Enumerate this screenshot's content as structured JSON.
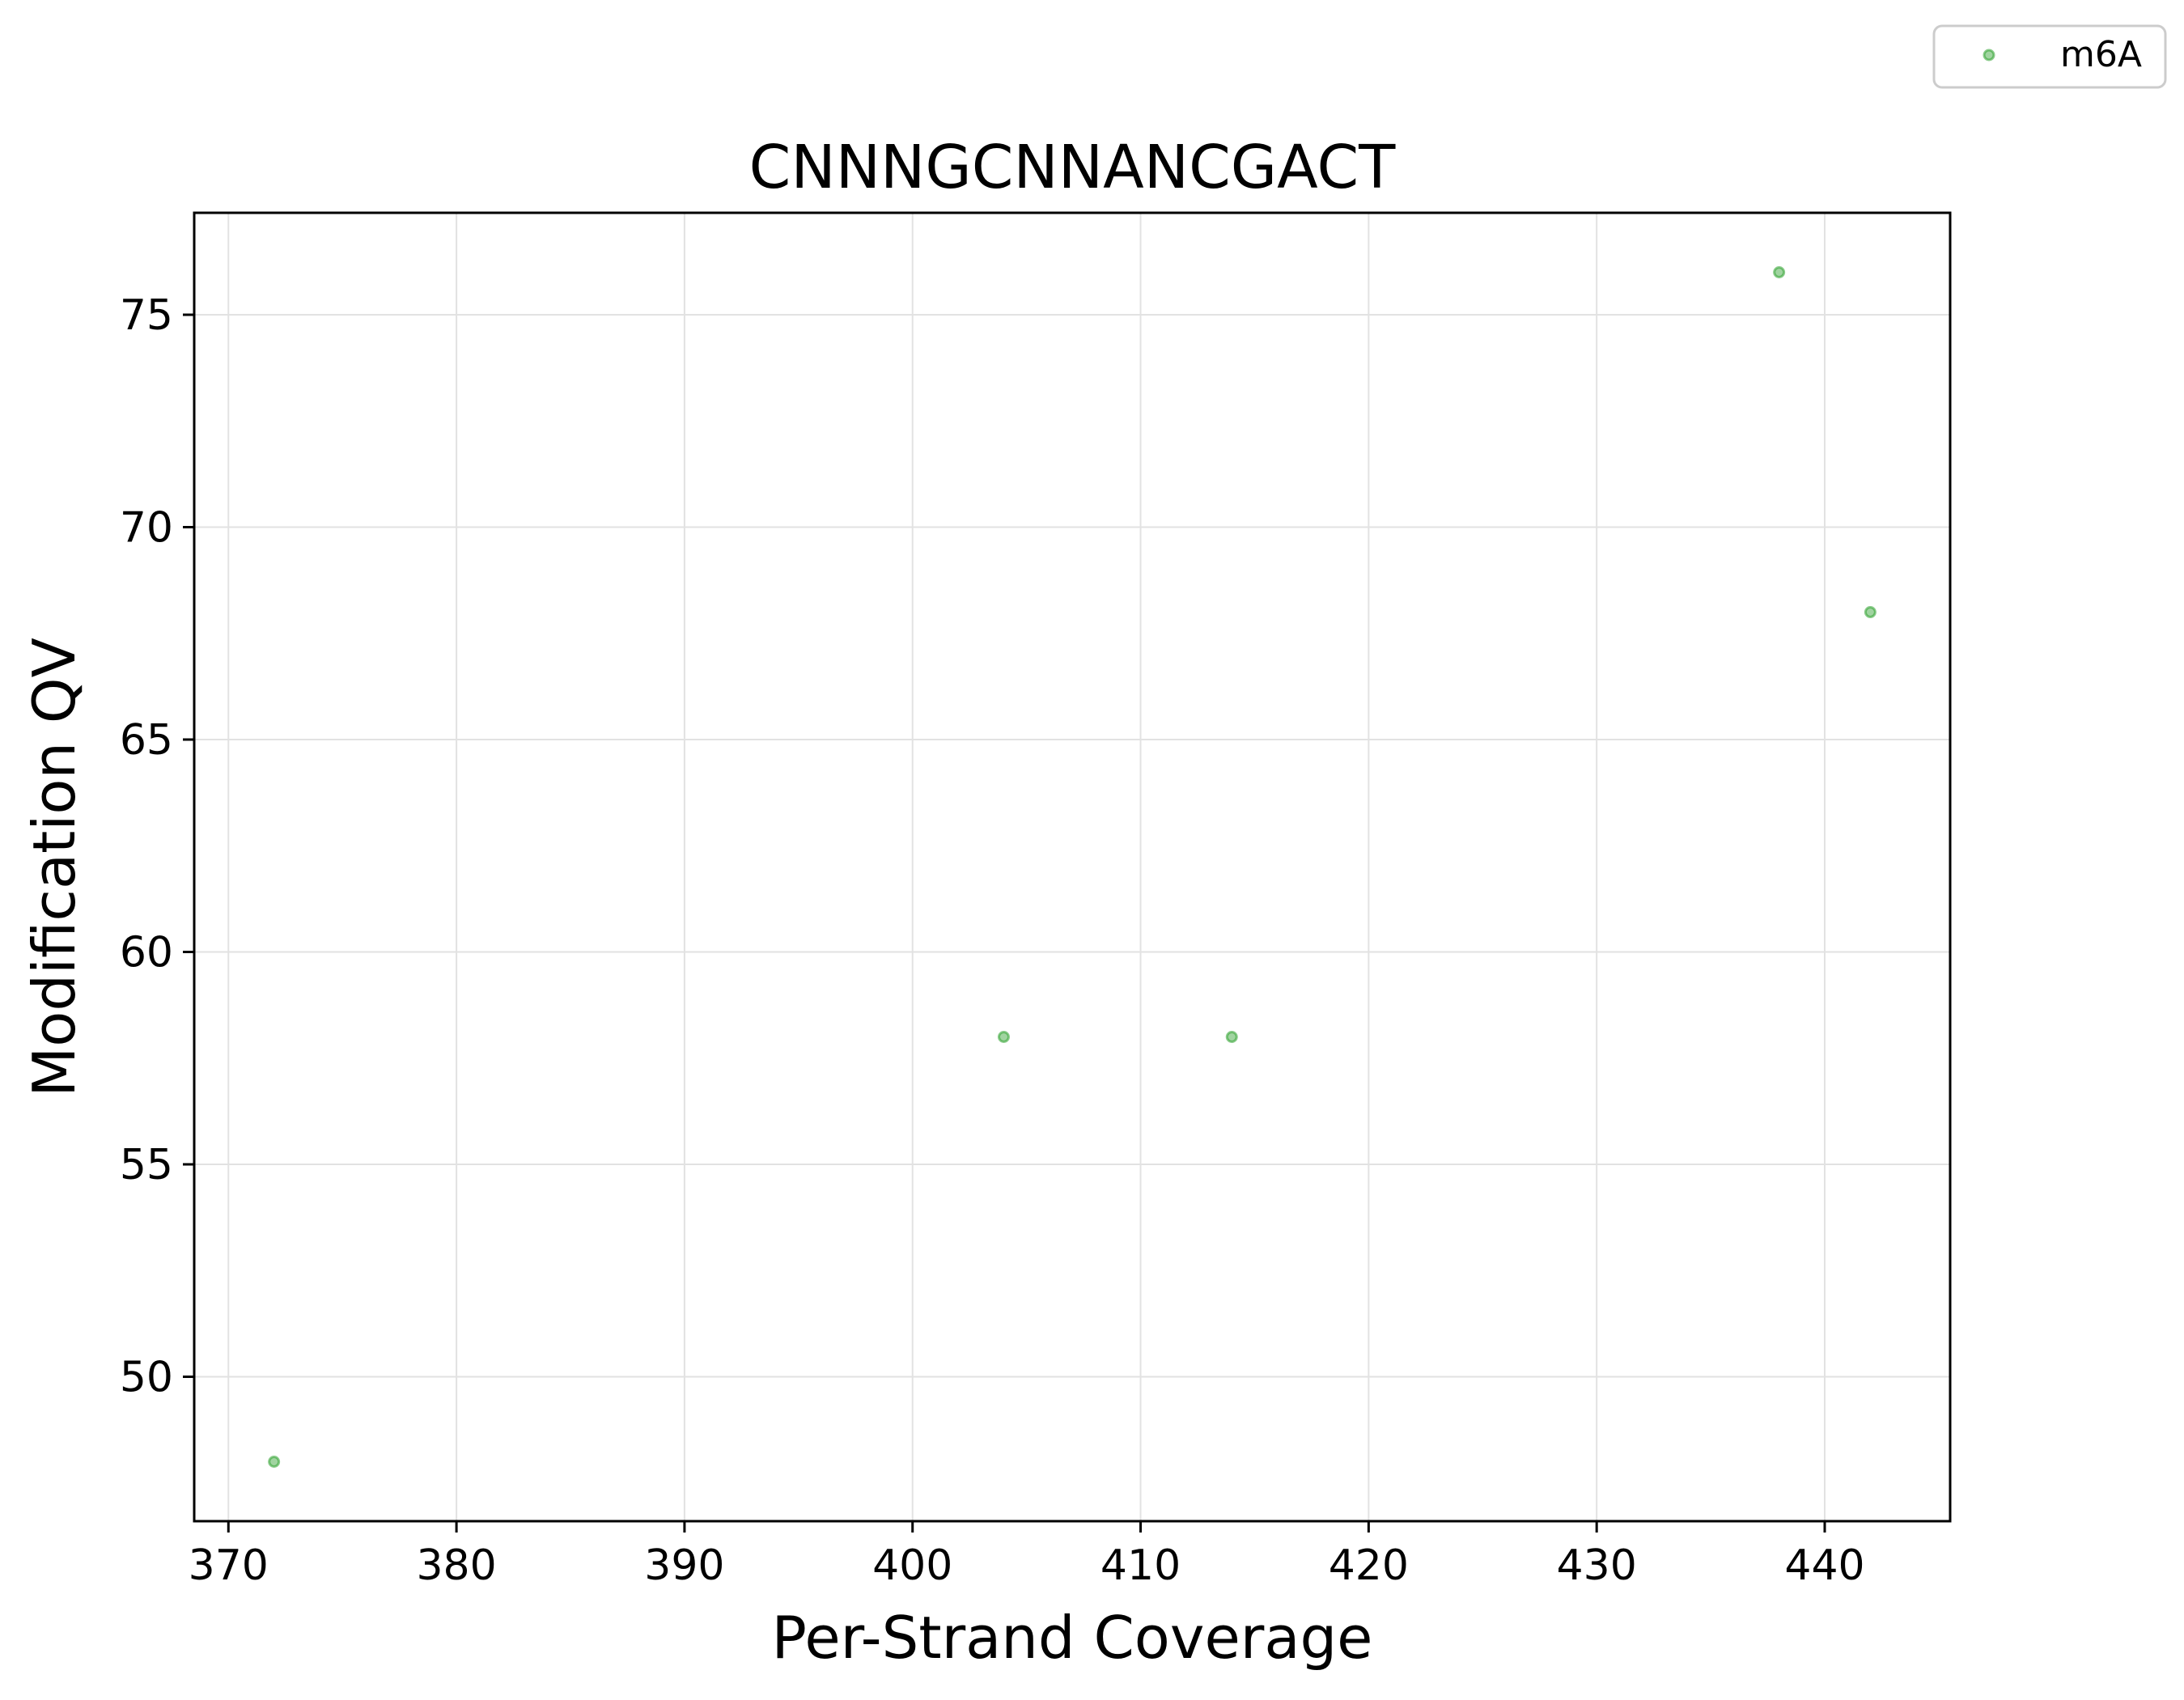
{
  "chart_data": {
    "type": "scatter",
    "title": "CNNNGCNNANCGACT",
    "xlabel": "Per-Strand Coverage",
    "ylabel": "Modification QV",
    "xlim": [
      368.5,
      445.5
    ],
    "ylim": [
      46.6,
      77.4
    ],
    "xticks": [
      370,
      380,
      390,
      400,
      410,
      420,
      430,
      440
    ],
    "yticks": [
      50,
      55,
      60,
      65,
      70,
      75
    ],
    "grid": true,
    "legend_position": "top-right",
    "series": [
      {
        "name": "m6A",
        "color": "#2ca02c",
        "points": [
          {
            "x": 372,
            "y": 48
          },
          {
            "x": 404,
            "y": 58
          },
          {
            "x": 414,
            "y": 58
          },
          {
            "x": 438,
            "y": 76
          },
          {
            "x": 442,
            "y": 68
          }
        ]
      }
    ]
  }
}
